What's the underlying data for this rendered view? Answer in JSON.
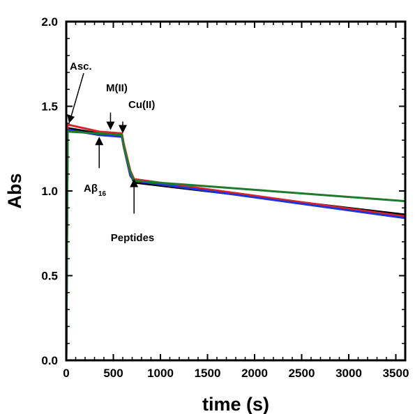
{
  "chart_data": {
    "type": "line",
    "title": "",
    "xlabel": "time (s)",
    "ylabel": "Abs",
    "xlim": [
      0,
      3600
    ],
    "ylim": [
      0,
      2.0
    ],
    "x_ticks": [
      0,
      500,
      1000,
      1500,
      2000,
      2500,
      3000,
      3500
    ],
    "x_tick_labels": [
      "0",
      "500",
      "1000",
      "1500",
      "2000",
      "2500",
      "3000",
      "3500"
    ],
    "y_ticks": [
      0,
      0.5,
      1.0,
      1.5,
      2.0
    ],
    "y_tick_labels": [
      "0.0",
      "0.5",
      "1.0",
      "1.5",
      "2.0"
    ],
    "grid": false,
    "series": [
      {
        "color": "#000000",
        "x": [
          0,
          15,
          30,
          350,
          590,
          610,
          680,
          720,
          3600
        ],
        "y": [
          0,
          1.37,
          1.37,
          1.34,
          1.33,
          1.27,
          1.1,
          1.05,
          0.86
        ]
      },
      {
        "color": "#d7262b",
        "x": [
          0,
          15,
          30,
          350,
          590,
          610,
          680,
          720,
          3600
        ],
        "y": [
          0,
          1.39,
          1.39,
          1.35,
          1.34,
          1.28,
          1.12,
          1.07,
          0.85
        ]
      },
      {
        "color": "#1f35d6",
        "x": [
          0,
          15,
          30,
          350,
          590,
          610,
          680,
          720,
          3600
        ],
        "y": [
          0,
          1.36,
          1.36,
          1.33,
          1.32,
          1.26,
          1.09,
          1.06,
          0.84
        ]
      },
      {
        "color": "#1f7a2b",
        "x": [
          0,
          15,
          30,
          350,
          590,
          610,
          680,
          720,
          3600
        ],
        "y": [
          0,
          1.35,
          1.35,
          1.34,
          1.33,
          1.26,
          1.11,
          1.06,
          0.94
        ]
      }
    ],
    "annotations": [
      {
        "text": "Asc.",
        "x": 30,
        "y": 1.4
      },
      {
        "text": "M(II)",
        "x": 470,
        "y": 1.36
      },
      {
        "text": "Cu(II)",
        "x": 600,
        "y": 1.34
      },
      {
        "text": "Aβ",
        "subscript": "16",
        "x": 350,
        "y": 1.32
      },
      {
        "text": "Peptides",
        "x": 720,
        "y": 1.08
      }
    ]
  }
}
